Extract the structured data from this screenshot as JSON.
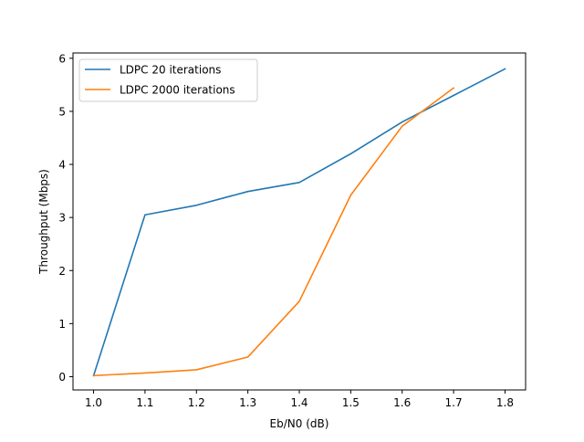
{
  "chart_data": {
    "type": "line",
    "title": "",
    "xlabel": "Eb/N0 (dB)",
    "ylabel": "Throughput (Mbps)",
    "xlim": [
      0.96,
      1.84
    ],
    "ylim": [
      -0.25,
      6.1
    ],
    "xticks": [
      1.0,
      1.1,
      1.2,
      1.3,
      1.4,
      1.5,
      1.6,
      1.7,
      1.8
    ],
    "xtick_labels": [
      "1.0",
      "1.1",
      "1.2",
      "1.3",
      "1.4",
      "1.5",
      "1.6",
      "1.7",
      "1.8"
    ],
    "yticks": [
      0,
      1,
      2,
      3,
      4,
      5,
      6
    ],
    "ytick_labels": [
      "0",
      "1",
      "2",
      "3",
      "4",
      "5",
      "6"
    ],
    "grid": false,
    "legend": "top-left",
    "series": [
      {
        "name": "LDPC 20 iterations",
        "color": "#1f77b4",
        "x": [
          1.0,
          1.1,
          1.2,
          1.3,
          1.4,
          1.5,
          1.6,
          1.7,
          1.8
        ],
        "y": [
          0.02,
          3.05,
          3.23,
          3.49,
          3.66,
          4.2,
          4.8,
          5.3,
          5.8
        ]
      },
      {
        "name": "LDPC 2000 iterations",
        "color": "#ff7f0e",
        "x": [
          1.0,
          1.1,
          1.2,
          1.3,
          1.4,
          1.5,
          1.6,
          1.7
        ],
        "y": [
          0.02,
          0.07,
          0.13,
          0.37,
          1.42,
          3.42,
          4.72,
          5.44
        ]
      }
    ]
  }
}
